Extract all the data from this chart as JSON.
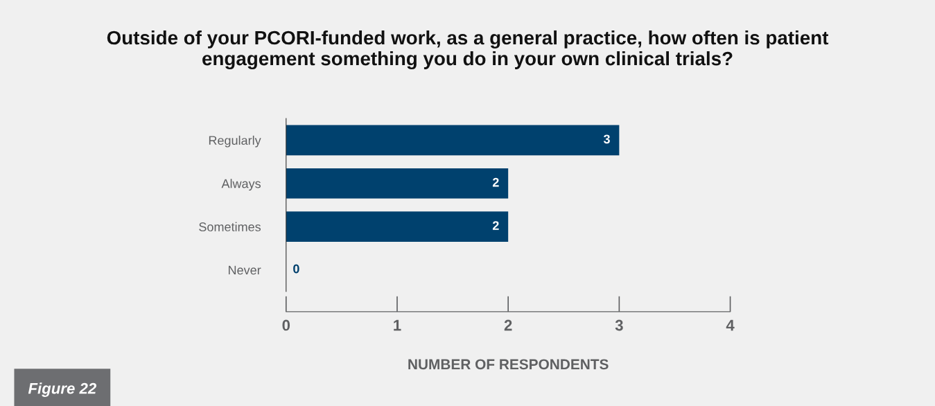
{
  "chart_data": {
    "type": "bar",
    "orientation": "horizontal",
    "title": "Outside of your PCORI-funded work, as a general practice, how often is patient\nengagement something you do in your own clinical trials?",
    "categories": [
      "Regularly",
      "Always",
      "Sometimes",
      "Never"
    ],
    "values": [
      3,
      2,
      2,
      0
    ],
    "color": "#00416e",
    "xlim": [
      0,
      4
    ],
    "xticks": [
      0,
      1,
      2,
      3,
      4
    ],
    "xlabel": "NUMBER OF RESPONDENTS",
    "data_labels": true,
    "grid": false,
    "legend": false,
    "annotations": [
      "Figure 22"
    ]
  }
}
